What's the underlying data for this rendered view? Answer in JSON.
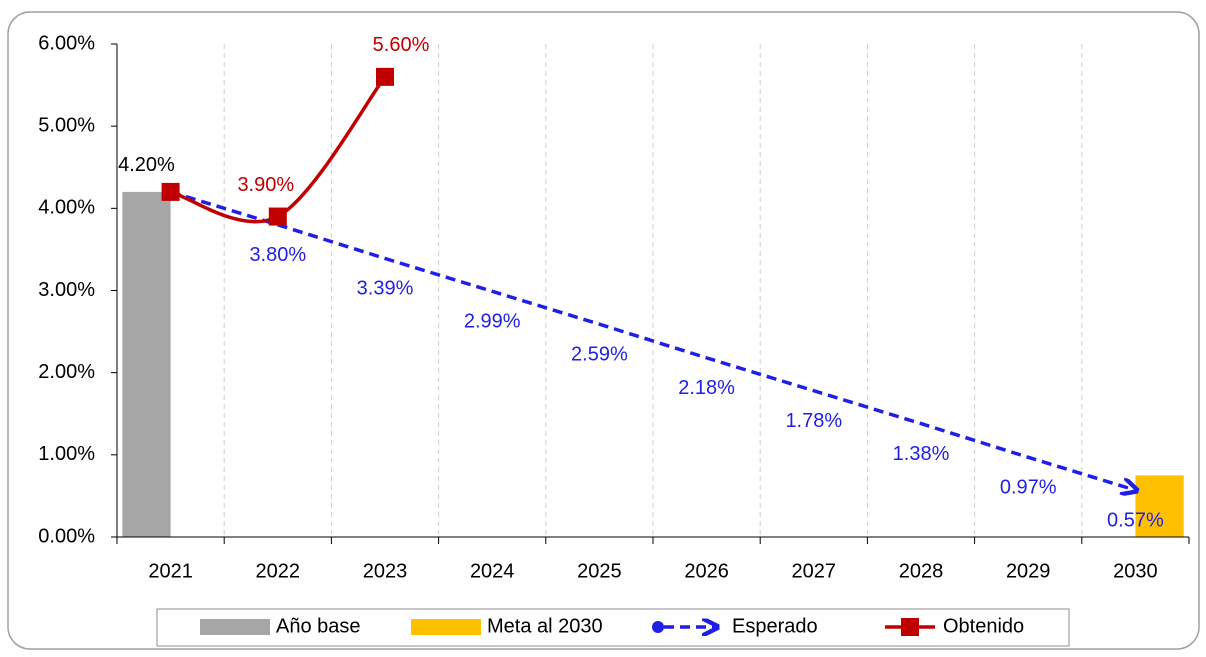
{
  "chart_data": {
    "type": "combo",
    "categories": [
      "2021",
      "2022",
      "2023",
      "2024",
      "2025",
      "2026",
      "2027",
      "2028",
      "2029",
      "2030"
    ],
    "ylim": [
      0,
      6
    ],
    "yticks": [
      {
        "value": 0,
        "label": "0.00%"
      },
      {
        "value": 1,
        "label": "1.00%"
      },
      {
        "value": 2,
        "label": "2.00%"
      },
      {
        "value": 3,
        "label": "3.00%"
      },
      {
        "value": 4,
        "label": "4.00%"
      },
      {
        "value": 5,
        "label": "5.00%"
      },
      {
        "value": 6,
        "label": "6.00%"
      }
    ],
    "vertical_grid": true,
    "legend": "bottom",
    "series": [
      {
        "name": "Año base",
        "type": "bar",
        "color": "#a6a6a6",
        "values": [
          4.2,
          null,
          null,
          null,
          null,
          null,
          null,
          null,
          null,
          null
        ],
        "value_labels": [
          "4.20%",
          null,
          null,
          null,
          null,
          null,
          null,
          null,
          null,
          null
        ]
      },
      {
        "name": "Meta al 2030",
        "type": "bar",
        "color": "#ffc000",
        "values": [
          null,
          null,
          null,
          null,
          null,
          null,
          null,
          null,
          null,
          0.75
        ]
      },
      {
        "name": "Esperado",
        "type": "line",
        "color": "#1f1fe6",
        "dashed": true,
        "marker": "arrow",
        "values": [
          4.2,
          3.8,
          3.39,
          2.99,
          2.59,
          2.18,
          1.78,
          1.38,
          0.97,
          0.57
        ],
        "value_labels": [
          null,
          "3.80%",
          "3.39%",
          "2.99%",
          "2.59%",
          "2.18%",
          "1.78%",
          "1.38%",
          "0.97%",
          "0.57%"
        ]
      },
      {
        "name": "Obtenido",
        "type": "line",
        "color": "#c00000",
        "smooth": true,
        "marker": "square",
        "values": [
          4.2,
          3.9,
          5.6,
          null,
          null,
          null,
          null,
          null,
          null,
          null
        ],
        "value_labels": [
          null,
          "3.90%",
          "5.60%",
          null,
          null,
          null,
          null,
          null,
          null,
          null
        ]
      }
    ]
  }
}
